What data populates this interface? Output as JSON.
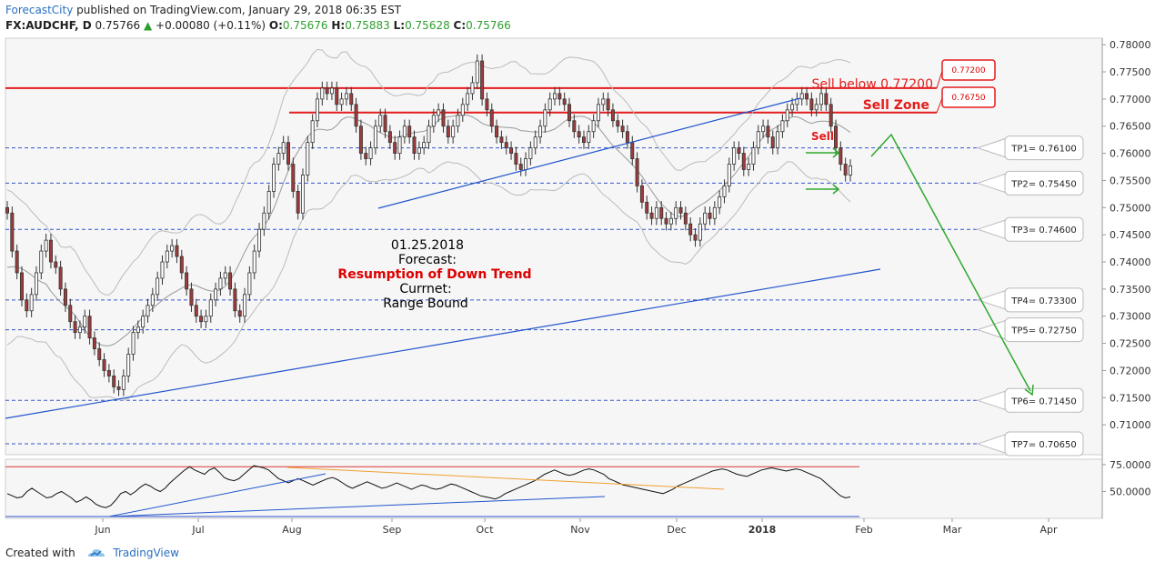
{
  "header": {
    "brand": "ForecastCity",
    "published": " published on TradingView.com, January 29, 2018 06:35 EST",
    "symbol": "FX:AUDCHF, D",
    "last": "0.75766",
    "change_arrow": "▲",
    "change": "+0.00080 (+0.11%)",
    "o_label": "O:",
    "o": "0.75676",
    "h_label": "H:",
    "h": "0.75883",
    "l_label": "L:",
    "l": "0.75628",
    "c_label": "C:",
    "c": "0.75766"
  },
  "footer": {
    "created_with": "Created with",
    "tradingview": "TradingView"
  },
  "colors": {
    "up_candle": "#ffffff",
    "down_candle": "#a03b3b",
    "resistance": "#e31c1c",
    "target_line": "#3355cc",
    "trend_line": "#2255cc",
    "forecast_arrow": "#2ea82e",
    "rsi_line": "#111111",
    "rsi_trend": "#f0a030",
    "bollinger": "#bbbbbb"
  },
  "chart_data": {
    "type": "line",
    "title": "",
    "symbol": "FX:AUDCHF",
    "timeframe": "D",
    "x_ticks": [
      "Jun",
      "Jul",
      "Aug",
      "Sep",
      "Oct",
      "Nov",
      "Dec",
      "2018",
      "Feb",
      "Mar",
      "Apr"
    ],
    "y_ticks": [
      "0.78000",
      "0.77500",
      "0.77000",
      "0.76500",
      "0.76000",
      "0.75500",
      "0.75000",
      "0.74500",
      "0.74000",
      "0.73500",
      "0.73000",
      "0.72500",
      "0.72000",
      "0.71500",
      "0.71000"
    ],
    "ylim": [
      0.7045,
      0.7812
    ],
    "series": [
      {
        "values": [
          0.749,
          0.742,
          0.738,
          0.733,
          0.731,
          0.734,
          0.738,
          0.742,
          0.744,
          0.74,
          0.739,
          0.735,
          0.732,
          0.729,
          0.727,
          0.728,
          0.73,
          0.726,
          0.724,
          0.722,
          0.72,
          0.719,
          0.717,
          0.7165,
          0.719,
          0.723,
          0.727,
          0.728,
          0.73,
          0.732,
          0.734,
          0.737,
          0.74,
          0.742,
          0.743,
          0.741,
          0.738,
          0.735,
          0.732,
          0.73,
          0.729,
          0.73,
          0.733,
          0.735,
          0.737,
          0.738,
          0.735,
          0.731,
          0.73,
          0.734,
          0.738,
          0.742,
          0.746,
          0.749,
          0.753,
          0.758,
          0.76,
          0.762,
          0.758,
          0.753,
          0.749,
          0.756,
          0.762,
          0.766,
          0.77,
          0.772,
          0.771,
          0.772,
          0.769,
          0.77,
          0.771,
          0.769,
          0.765,
          0.76,
          0.759,
          0.761,
          0.765,
          0.767,
          0.764,
          0.762,
          0.76,
          0.763,
          0.765,
          0.763,
          0.76,
          0.761,
          0.762,
          0.765,
          0.767,
          0.768,
          0.765,
          0.763,
          0.765,
          0.767,
          0.769,
          0.771,
          0.773,
          0.777,
          0.77,
          0.768,
          0.765,
          0.763,
          0.762,
          0.761,
          0.76,
          0.758,
          0.757,
          0.759,
          0.761,
          0.763,
          0.765,
          0.768,
          0.77,
          0.771,
          0.77,
          0.769,
          0.766,
          0.764,
          0.763,
          0.762,
          0.764,
          0.766,
          0.769,
          0.77,
          0.768,
          0.766,
          0.765,
          0.764,
          0.762,
          0.759,
          0.754,
          0.751,
          0.749,
          0.748,
          0.75,
          0.748,
          0.747,
          0.748,
          0.75,
          0.749,
          0.747,
          0.745,
          0.744,
          0.747,
          0.749,
          0.748,
          0.75,
          0.752,
          0.754,
          0.758,
          0.761,
          0.76,
          0.757,
          0.758,
          0.761,
          0.764,
          0.765,
          0.763,
          0.761,
          0.764,
          0.766,
          0.768,
          0.769,
          0.77,
          0.771,
          0.77,
          0.768,
          0.769,
          0.771,
          0.769,
          0.765,
          0.761,
          0.758,
          0.756,
          0.7577
        ],
        "close": 0.75766
      }
    ],
    "levels": [
      {
        "label": "TP1= 0.76100",
        "value": 0.761
      },
      {
        "label": "TP2= 0.75450",
        "value": 0.7545
      },
      {
        "label": "TP3= 0.74600",
        "value": 0.746
      },
      {
        "label": "TP4= 0.73300",
        "value": 0.733
      },
      {
        "label": "TP5= 0.72750",
        "value": 0.7275
      },
      {
        "label": "TP6= 0.71450",
        "value": 0.7145
      },
      {
        "label": "TP7= 0.70650",
        "value": 0.7065
      }
    ],
    "resistance": [
      {
        "label": "0.77200",
        "value": 0.772
      },
      {
        "label": "0.76750",
        "value": 0.7675
      }
    ],
    "annotations": {
      "sell_below": "Sell below 0.77200",
      "sell_zone": "Sell Zone",
      "sell": "Sell",
      "forecast_date": "01.25.2018",
      "forecast_label": "Forecast:",
      "forecast_value": "Resumption of Down Trend",
      "current_label": "Currnet:",
      "current_value": "Range Bound"
    },
    "rsi": {
      "y_ticks": [
        "75.0000",
        "50.0000"
      ],
      "ylim": [
        25,
        80
      ],
      "values": [
        48,
        46,
        44,
        45,
        50,
        53,
        50,
        47,
        44,
        45,
        48,
        50,
        47,
        44,
        40,
        42,
        45,
        42,
        38,
        36,
        35,
        37,
        42,
        48,
        50,
        47,
        50,
        54,
        57,
        55,
        52,
        50,
        53,
        58,
        62,
        66,
        70,
        73,
        70,
        68,
        66,
        70,
        72,
        68,
        63,
        61,
        60,
        62,
        66,
        70,
        74,
        73,
        72,
        70,
        66,
        62,
        60,
        58,
        60,
        62,
        60,
        58,
        56,
        58,
        60,
        62,
        63,
        61,
        58,
        55,
        53,
        55,
        57,
        59,
        57,
        55,
        53,
        54,
        56,
        58,
        56,
        54,
        52,
        54,
        56,
        55,
        53,
        52,
        53,
        55,
        57,
        56,
        54,
        52,
        50,
        48,
        46,
        45,
        44,
        43,
        45,
        48,
        50,
        52,
        54,
        56,
        58,
        60,
        63,
        66,
        68,
        70,
        68,
        66,
        65,
        66,
        68,
        70,
        71,
        70,
        68,
        66,
        62,
        60,
        58,
        56,
        55,
        54,
        53,
        52,
        51,
        50,
        49,
        48,
        50,
        52,
        55,
        57,
        59,
        61,
        63,
        65,
        67,
        69,
        70,
        71,
        70,
        68,
        66,
        65,
        64,
        66,
        68,
        70,
        71,
        72,
        71,
        70,
        69,
        70,
        71,
        70,
        68,
        66,
        64,
        62,
        58,
        54,
        50,
        46,
        44,
        45
      ]
    }
  }
}
